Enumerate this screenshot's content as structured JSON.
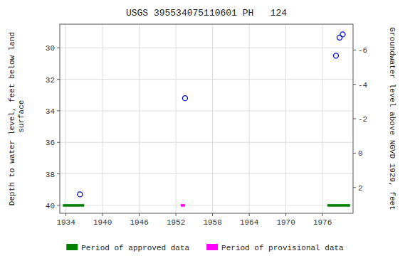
{
  "chart_data": {
    "type": "scatter",
    "title": "USGS 395534075110601 PH   124",
    "y_label": "Depth to water level, feet below land\n surface",
    "y2_label": "Groundwater level above NGVD 1929, feet",
    "xlim": [
      1933,
      1981
    ],
    "xticks": [
      1934,
      1940,
      1946,
      1952,
      1958,
      1964,
      1970,
      1976
    ],
    "ylim": [
      40.5,
      28.5
    ],
    "yticks": [
      30,
      32,
      34,
      36,
      38,
      40
    ],
    "y2lim": [
      3.5,
      -7.5
    ],
    "y2ticks": [
      2,
      0,
      -2,
      -4,
      -6
    ],
    "grid": true,
    "legend": "bottom",
    "bar_y": 40.0,
    "bar_height": 0.08,
    "series": [
      {
        "type": "scatter",
        "color": "#0000cc",
        "marker": "open_circle",
        "x": [
          1936.3,
          1953.5,
          1978.2,
          1978.8,
          1979.3
        ],
        "values": [
          39.3,
          33.2,
          30.5,
          29.35,
          29.15
        ]
      },
      {
        "type": "period",
        "name": "Period of approved data",
        "color": "#008000",
        "x_start": [
          1933.5,
          1976.8
        ],
        "x_end": [
          1937.0,
          1980.5
        ]
      },
      {
        "type": "period",
        "name": "Period of provisional data",
        "color": "#ff00ff",
        "x_start": [
          1952.8
        ],
        "x_end": [
          1953.5
        ]
      }
    ]
  }
}
